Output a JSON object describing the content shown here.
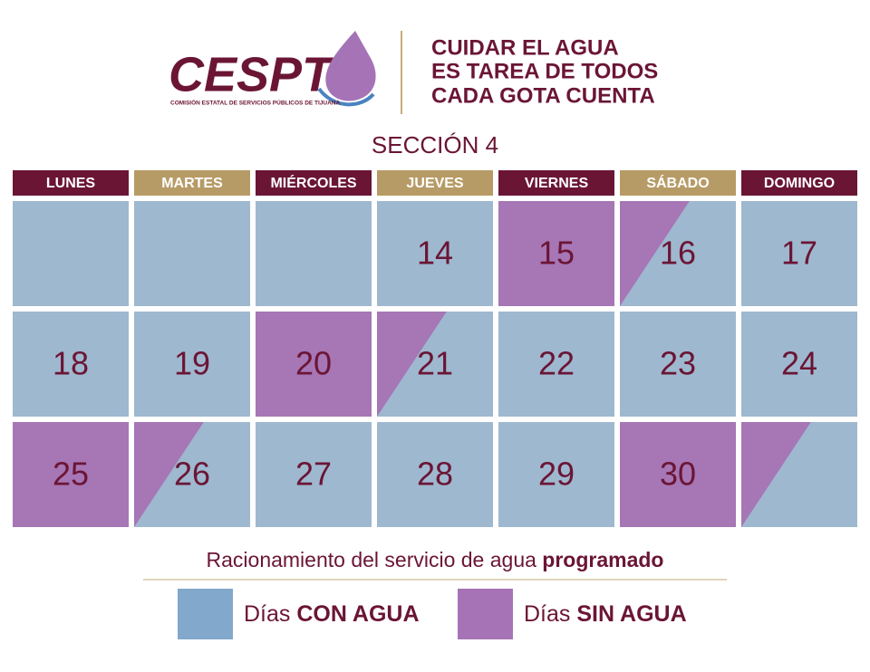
{
  "header": {
    "logo": "CESPT",
    "logo_subtitle": "COMISIÓN ESTATAL DE SERVICIOS PÚBLICOS DE TIJUANA",
    "slogan": [
      "CUIDAR EL AGUA",
      "ES TAREA DE TODOS",
      "CADA GOTA CUENTA"
    ]
  },
  "section": "SECCIÓN 4",
  "weekdays": [
    {
      "label": "LUNES",
      "color": "#6b1535"
    },
    {
      "label": "MARTES",
      "color": "#b79b66"
    },
    {
      "label": "MIÉRCOLES",
      "color": "#6b1535"
    },
    {
      "label": "JUEVES",
      "color": "#b79b66"
    },
    {
      "label": "VIERNES",
      "color": "#6b1535"
    },
    {
      "label": "SÁBADO",
      "color": "#b79b66"
    },
    {
      "label": "DOMINGO",
      "color": "#6b1535"
    }
  ],
  "weeks": [
    [
      {
        "day": null,
        "water": "with"
      },
      {
        "day": null,
        "water": "with"
      },
      {
        "day": null,
        "water": "with"
      },
      {
        "day": "14",
        "water": "with"
      },
      {
        "day": "15",
        "water": "without"
      },
      {
        "day": "16",
        "water": "partial"
      },
      {
        "day": "17",
        "water": "with"
      }
    ],
    [
      {
        "day": "18",
        "water": "with"
      },
      {
        "day": "19",
        "water": "with"
      },
      {
        "day": "20",
        "water": "without"
      },
      {
        "day": "21",
        "water": "partial"
      },
      {
        "day": "22",
        "water": "with"
      },
      {
        "day": "23",
        "water": "with"
      },
      {
        "day": "24",
        "water": "with"
      }
    ],
    [
      {
        "day": "25",
        "water": "without"
      },
      {
        "day": "26",
        "water": "partial"
      },
      {
        "day": "27",
        "water": "with"
      },
      {
        "day": "28",
        "water": "with"
      },
      {
        "day": "29",
        "water": "with"
      },
      {
        "day": "30",
        "water": "without"
      },
      {
        "day": null,
        "water": "partial"
      }
    ]
  ],
  "legend": {
    "title": "Racionamiento del servicio de agua ",
    "title_bold": "programado",
    "items": [
      {
        "prefix": "Días ",
        "label": "CON AGUA",
        "color": "#82a8cb"
      },
      {
        "prefix": "Días ",
        "label": "SIN AGUA",
        "color": "#a673b6"
      }
    ]
  }
}
